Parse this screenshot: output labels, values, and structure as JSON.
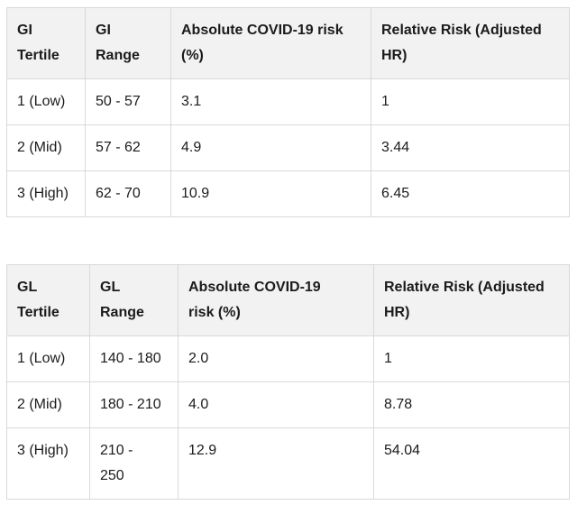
{
  "colors": {
    "background": "#ffffff",
    "header_bg": "#f2f2f2",
    "border": "#d9d9d9",
    "text": "#1b1b1b"
  },
  "chart_data": [
    {
      "type": "table",
      "columns": [
        "GI\nTertile",
        "GI\nRange",
        "Absolute COVID-19 risk\n(%)",
        "Relative Risk (Adjusted\nHR)"
      ],
      "rows": [
        [
          "1 (Low)",
          "50 - 57",
          "3.1",
          "1"
        ],
        [
          "2 (Mid)",
          "57 - 62",
          "4.9",
          "3.44"
        ],
        [
          "3 (High)",
          "62 - 70",
          "10.9",
          "6.45"
        ]
      ]
    },
    {
      "type": "table",
      "columns": [
        "GL\nTertile",
        "GL\nRange",
        "Absolute COVID-19\nrisk (%)",
        "Relative Risk (Adjusted\nHR)"
      ],
      "rows": [
        [
          "1 (Low)",
          "140 - 180",
          "2.0",
          "1"
        ],
        [
          "2 (Mid)",
          "180 - 210",
          "4.0",
          "8.78"
        ],
        [
          "3 (High)",
          "210 -\n250",
          "12.9",
          "54.04"
        ]
      ]
    }
  ]
}
